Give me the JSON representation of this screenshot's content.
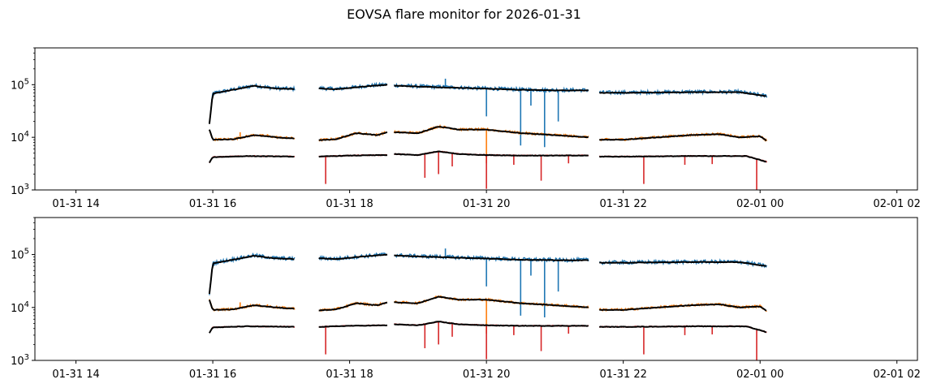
{
  "chart_data": {
    "title": "EOVSA flare monitor for 2026-01-31",
    "type": "line",
    "yscale": "log",
    "ylim": [
      1000,
      500000
    ],
    "xlim_hours": [
      13.4,
      26.3
    ],
    "xtick_hours": [
      14,
      16,
      18,
      20,
      22,
      24,
      26
    ],
    "xtick_labels": [
      "01-31 14",
      "01-31 16",
      "01-31 18",
      "01-31 20",
      "01-31 22",
      "02-01 00",
      "02-01 02"
    ],
    "ytick_values": [
      1000,
      10000,
      100000
    ],
    "ytick_labels": [
      {
        "base": "10",
        "exp": "3"
      },
      {
        "base": "10",
        "exp": "4"
      },
      {
        "base": "10",
        "exp": "5"
      }
    ],
    "colors": {
      "high": "#1f77b4",
      "mid": "#ff7f0e",
      "low": "#d62728",
      "smooth": "#000000"
    },
    "segments": [
      [
        15.95,
        17.2
      ],
      [
        17.55,
        18.55
      ],
      [
        18.65,
        21.5
      ],
      [
        21.65,
        24.1
      ]
    ],
    "panels": [
      {
        "name": "panel-top",
        "series": [
          {
            "name": "high",
            "color": "#1f77b4",
            "noise": 0.08,
            "points": [
              [
                15.95,
                18000
              ],
              [
                16.0,
                68000
              ],
              [
                16.3,
                80000
              ],
              [
                16.6,
                95000
              ],
              [
                16.9,
                85000
              ],
              [
                17.2,
                82000
              ],
              [
                17.55,
                85000
              ],
              [
                17.8,
                82000
              ],
              [
                18.2,
                92000
              ],
              [
                18.55,
                100000
              ],
              [
                18.65,
                96000
              ],
              [
                19.0,
                92000
              ],
              [
                19.5,
                88000
              ],
              [
                20.0,
                84000
              ],
              [
                20.5,
                80000
              ],
              [
                21.0,
                78000
              ],
              [
                21.5,
                78000
              ],
              [
                21.65,
                70000
              ],
              [
                22.0,
                70000
              ],
              [
                23.0,
                72000
              ],
              [
                23.7,
                72000
              ],
              [
                24.1,
                60000
              ]
            ],
            "spikes": [
              [
                20.0,
                25000
              ],
              [
                20.5,
                7000
              ],
              [
                20.85,
                6500
              ],
              [
                21.05,
                20000
              ],
              [
                20.65,
                40000
              ],
              [
                19.4,
                130000
              ]
            ]
          },
          {
            "name": "mid",
            "color": "#ff7f0e",
            "noise": 0.05,
            "points": [
              [
                15.95,
                14000
              ],
              [
                16.0,
                9000
              ],
              [
                16.3,
                9200
              ],
              [
                16.6,
                11000
              ],
              [
                17.0,
                9800
              ],
              [
                17.2,
                9500
              ],
              [
                17.55,
                8800
              ],
              [
                17.8,
                9200
              ],
              [
                18.1,
                12000
              ],
              [
                18.4,
                11000
              ],
              [
                18.55,
                12500
              ],
              [
                18.65,
                12500
              ],
              [
                19.0,
                12000
              ],
              [
                19.3,
                16000
              ],
              [
                19.6,
                14000
              ],
              [
                20.0,
                14000
              ],
              [
                20.5,
                12000
              ],
              [
                21.0,
                11000
              ],
              [
                21.5,
                10000
              ],
              [
                21.65,
                9000
              ],
              [
                22.0,
                9000
              ],
              [
                22.5,
                10000
              ],
              [
                23.0,
                11000
              ],
              [
                23.4,
                11500
              ],
              [
                23.7,
                10000
              ],
              [
                24.0,
                10500
              ],
              [
                24.1,
                8500
              ]
            ],
            "spikes": [
              [
                20.0,
                3200
              ],
              [
                16.4,
                12500
              ],
              [
                16.8,
                11500
              ]
            ]
          },
          {
            "name": "low",
            "color": "#d62728",
            "noise": 0.02,
            "points": [
              [
                15.95,
                3300
              ],
              [
                16.0,
                4200
              ],
              [
                16.5,
                4400
              ],
              [
                17.2,
                4300
              ],
              [
                17.55,
                4300
              ],
              [
                18.0,
                4500
              ],
              [
                18.55,
                4600
              ],
              [
                18.65,
                4800
              ],
              [
                19.0,
                4600
              ],
              [
                19.3,
                5400
              ],
              [
                19.6,
                4800
              ],
              [
                20.0,
                4600
              ],
              [
                20.5,
                4500
              ],
              [
                21.5,
                4500
              ],
              [
                21.65,
                4300
              ],
              [
                22.0,
                4300
              ],
              [
                23.0,
                4400
              ],
              [
                23.8,
                4400
              ],
              [
                24.1,
                3400
              ]
            ],
            "spikes": [
              [
                17.65,
                1300
              ],
              [
                19.1,
                1700
              ],
              [
                19.3,
                2000
              ],
              [
                19.5,
                2800
              ],
              [
                20.0,
                1050
              ],
              [
                20.8,
                1500
              ],
              [
                20.4,
                3000
              ],
              [
                21.2,
                3200
              ],
              [
                22.3,
                1300
              ],
              [
                22.9,
                3000
              ],
              [
                23.3,
                3100
              ],
              [
                23.95,
                900
              ]
            ]
          }
        ]
      },
      {
        "name": "panel-bottom",
        "series": [
          {
            "name": "high",
            "color": "#1f77b4",
            "noise": 0.08,
            "points": [
              [
                15.95,
                18000
              ],
              [
                16.0,
                68000
              ],
              [
                16.3,
                80000
              ],
              [
                16.6,
                95000
              ],
              [
                16.9,
                85000
              ],
              [
                17.2,
                82000
              ],
              [
                17.55,
                85000
              ],
              [
                17.8,
                82000
              ],
              [
                18.2,
                92000
              ],
              [
                18.55,
                100000
              ],
              [
                18.65,
                96000
              ],
              [
                19.0,
                92000
              ],
              [
                19.5,
                88000
              ],
              [
                20.0,
                84000
              ],
              [
                20.5,
                80000
              ],
              [
                21.0,
                78000
              ],
              [
                21.5,
                78000
              ],
              [
                21.65,
                70000
              ],
              [
                22.0,
                70000
              ],
              [
                23.0,
                72000
              ],
              [
                23.7,
                72000
              ],
              [
                24.1,
                60000
              ]
            ],
            "spikes": [
              [
                20.0,
                25000
              ],
              [
                20.5,
                7000
              ],
              [
                20.85,
                6500
              ],
              [
                21.05,
                20000
              ],
              [
                20.65,
                40000
              ],
              [
                19.4,
                130000
              ]
            ]
          },
          {
            "name": "mid",
            "color": "#ff7f0e",
            "noise": 0.05,
            "points": [
              [
                15.95,
                14000
              ],
              [
                16.0,
                9000
              ],
              [
                16.3,
                9200
              ],
              [
                16.6,
                11000
              ],
              [
                17.0,
                9800
              ],
              [
                17.2,
                9500
              ],
              [
                17.55,
                8800
              ],
              [
                17.8,
                9200
              ],
              [
                18.1,
                12000
              ],
              [
                18.4,
                11000
              ],
              [
                18.55,
                12500
              ],
              [
                18.65,
                12500
              ],
              [
                19.0,
                12000
              ],
              [
                19.3,
                16000
              ],
              [
                19.6,
                14000
              ],
              [
                20.0,
                14000
              ],
              [
                20.5,
                12000
              ],
              [
                21.0,
                11000
              ],
              [
                21.5,
                10000
              ],
              [
                21.65,
                9000
              ],
              [
                22.0,
                9000
              ],
              [
                22.5,
                10000
              ],
              [
                23.0,
                11000
              ],
              [
                23.4,
                11500
              ],
              [
                23.7,
                10000
              ],
              [
                24.0,
                10500
              ],
              [
                24.1,
                8500
              ]
            ],
            "spikes": [
              [
                20.0,
                3200
              ],
              [
                16.4,
                12500
              ],
              [
                16.8,
                11500
              ]
            ]
          },
          {
            "name": "low",
            "color": "#d62728",
            "noise": 0.02,
            "points": [
              [
                15.95,
                3300
              ],
              [
                16.0,
                4200
              ],
              [
                16.5,
                4400
              ],
              [
                17.2,
                4300
              ],
              [
                17.55,
                4300
              ],
              [
                18.0,
                4500
              ],
              [
                18.55,
                4600
              ],
              [
                18.65,
                4800
              ],
              [
                19.0,
                4600
              ],
              [
                19.3,
                5400
              ],
              [
                19.6,
                4800
              ],
              [
                20.0,
                4600
              ],
              [
                20.5,
                4500
              ],
              [
                21.5,
                4500
              ],
              [
                21.65,
                4300
              ],
              [
                22.0,
                4300
              ],
              [
                23.0,
                4400
              ],
              [
                23.8,
                4400
              ],
              [
                24.1,
                3400
              ]
            ],
            "spikes": [
              [
                17.65,
                1300
              ],
              [
                19.1,
                1700
              ],
              [
                19.3,
                2000
              ],
              [
                19.5,
                2800
              ],
              [
                20.0,
                1050
              ],
              [
                20.8,
                1500
              ],
              [
                20.4,
                3000
              ],
              [
                21.2,
                3200
              ],
              [
                22.3,
                1300
              ],
              [
                22.9,
                3000
              ],
              [
                23.3,
                3100
              ],
              [
                23.95,
                900
              ]
            ]
          }
        ]
      }
    ]
  }
}
